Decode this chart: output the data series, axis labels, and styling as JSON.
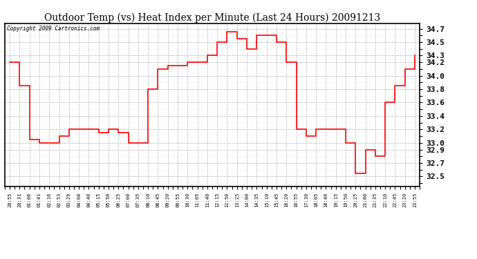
{
  "title": "Outdoor Temp (vs) Heat Index per Minute (Last 24 Hours) 20091213",
  "copyright": "Copyright 2009 Cartronics.com",
  "line_color": "#ff0000",
  "bg_color": "#ffffff",
  "grid_color": "#aaaaaa",
  "x_labels": [
    "20:55",
    "20:31",
    "01:06",
    "01:41",
    "02:16",
    "02:53",
    "03:29",
    "04:04",
    "04:40",
    "05:15",
    "05:50",
    "06:25",
    "07:00",
    "07:35",
    "08:10",
    "08:45",
    "09:20",
    "09:55",
    "10:30",
    "11:05",
    "11:40",
    "12:15",
    "12:50",
    "13:25",
    "14:00",
    "14:35",
    "15:10",
    "15:45",
    "16:20",
    "16:55",
    "17:30",
    "18:05",
    "18:40",
    "19:15",
    "19:50",
    "20:25",
    "21:00",
    "21:35",
    "22:10",
    "22:45",
    "23:20",
    "23:55"
  ],
  "yticks": [
    32.5,
    32.7,
    32.9,
    33.0,
    33.2,
    33.4,
    33.6,
    33.8,
    34.0,
    34.2,
    34.3,
    34.5,
    34.7
  ],
  "ylim_low": 32.35,
  "ylim_high": 34.78,
  "y_values": [
    34.2,
    33.85,
    33.05,
    33.0,
    33.0,
    33.1,
    33.2,
    33.2,
    33.2,
    33.15,
    33.2,
    33.15,
    33.0,
    33.0,
    33.8,
    34.1,
    34.15,
    34.15,
    34.2,
    34.2,
    34.3,
    34.5,
    34.65,
    34.55,
    34.4,
    34.6,
    34.6,
    34.5,
    34.2,
    33.2,
    33.1,
    33.2,
    33.2,
    33.2,
    33.0,
    32.55,
    32.9,
    32.8,
    33.6,
    33.85,
    34.1,
    34.3
  ]
}
